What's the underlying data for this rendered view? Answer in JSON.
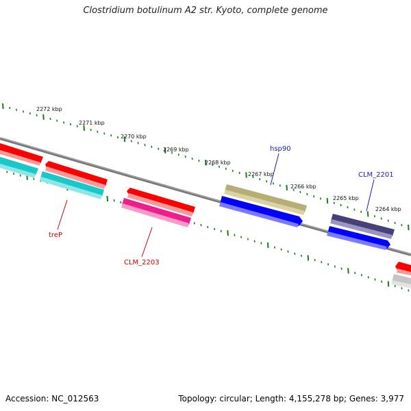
{
  "title": "Clostridium botulinum A2 str. Kyoto, complete genome",
  "footer": {
    "accession": "Accession: NC_012563",
    "summary": "Topology: circular; Length: 4,155,278 bp; Genes: 3,977"
  },
  "colors": {
    "backbone": "#777777",
    "ticks": "#1a7a1a",
    "label_red": "#cc0000",
    "label_blue": "#1a1aaa"
  },
  "kbp_labels": [
    "2272 kbp",
    "2271 kbp",
    "2270 kbp",
    "2269 kbp",
    "2268 kbp",
    "2267 kbp",
    "2266 kbp",
    "2265 kbp",
    "2264 kbp"
  ],
  "gene_labels": {
    "trep": "treP",
    "clm2203": "CLM_2203",
    "hsp90": "hsp90",
    "clm2201": "CLM_2201"
  }
}
